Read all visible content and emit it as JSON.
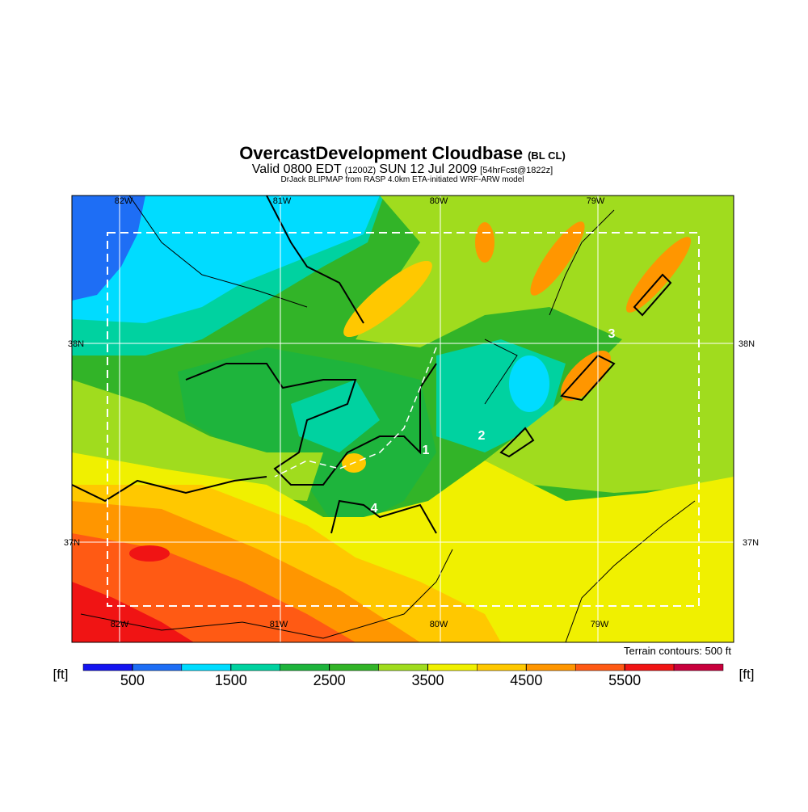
{
  "header": {
    "title": "OvercastDevelopment Cloudbase",
    "title_note": "(BL CL)",
    "valid": "Valid 0800 EDT",
    "zulu": "(1200Z)",
    "date": "SUN 12 Jul 2009",
    "forecast": "[54hrFcst@1822z]",
    "credit": "DrJack BLIPMAP from RASP 4.0km ETA-initiated WRF-ARW model"
  },
  "map": {
    "lon_labels": [
      "82W",
      "81W",
      "80W",
      "79W"
    ],
    "lat_labels": [
      "38N",
      "37N"
    ],
    "region_labels": [
      "1",
      "2",
      "3",
      "4"
    ],
    "terrain_note": "Terrain contours: 500 ft"
  },
  "colorbar": {
    "unit": "[ft]",
    "range": [
      0,
      6500
    ],
    "ticks": [
      500,
      1500,
      2500,
      3500,
      4500,
      5500
    ],
    "colors": [
      "#1414f0",
      "#1e6ef5",
      "#00dcff",
      "#00d2a0",
      "#1eb43c",
      "#32b428",
      "#a0dc1e",
      "#f0f000",
      "#ffc800",
      "#ff9600",
      "#ff5a14",
      "#f01414",
      "#c8003c"
    ]
  }
}
